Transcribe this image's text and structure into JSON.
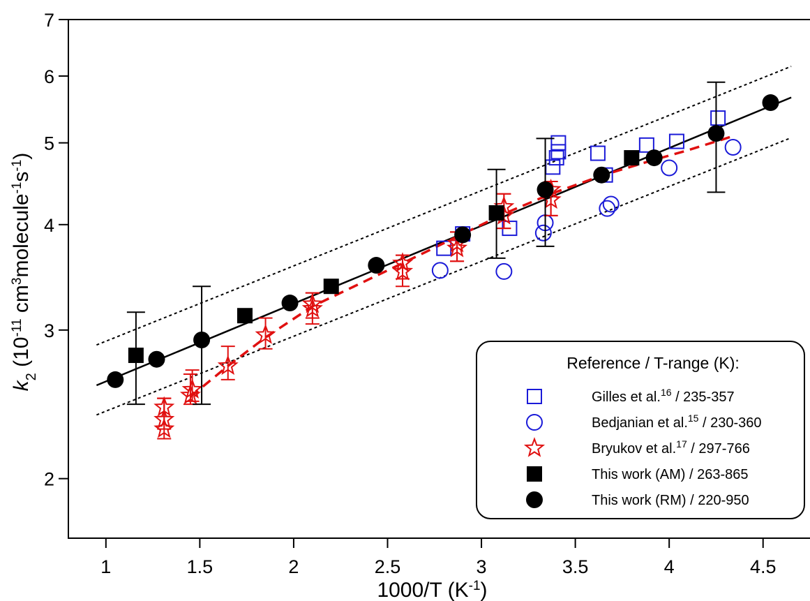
{
  "chart_data": {
    "type": "scatter",
    "title": "",
    "xlabel": "1000/T (K",
    "xlabel_sup": "-1",
    "xlabel_end": ")",
    "ylabel": {
      "var": "k",
      "sub": "2",
      "p1": " (10",
      "s1": "-11",
      "p2": " cm",
      "s2": "3",
      "p3": "molecule",
      "s3": "-1",
      "p4": "s",
      "s4": "-1",
      "p5": ")"
    },
    "xlim": [
      0.8,
      4.75
    ],
    "ylim": [
      1.7,
      7
    ],
    "y_scale": "log",
    "x_ticks": [
      1,
      1.5,
      2,
      2.5,
      3,
      3.5,
      4,
      4.5
    ],
    "x_tick_labels": [
      "1",
      "1.5",
      "2",
      "2.5",
      "3",
      "3.5",
      "4",
      "4.5"
    ],
    "y_ticks": [
      2,
      3,
      4,
      5,
      6,
      7
    ],
    "y_tick_labels": [
      "2",
      "3",
      "4",
      "5",
      "6",
      "7"
    ],
    "grid": false,
    "legend": {
      "placement": "bottom-right",
      "title": "Reference / T-range (K):",
      "entries": [
        {
          "pre": "Gilles et al.",
          "sup": "16",
          "post": " / 235-357",
          "marker": "open-square",
          "color": "#1a1ad8"
        },
        {
          "pre": "Bedjanian et al.",
          "sup": "15",
          "post": " / 230-360",
          "marker": "open-circle",
          "color": "#1a1ad8"
        },
        {
          "pre": "Bryukov et al.",
          "sup": "17",
          "post": " / 297-766",
          "marker": "open-star",
          "color": "#e01010"
        },
        {
          "pre": "This work (AM)",
          "sup": "",
          "post": " / 263-865",
          "marker": "filled-square",
          "color": "#000000"
        },
        {
          "pre": "This work (RM)",
          "sup": "",
          "post": " / 220-950",
          "marker": "filled-circle",
          "color": "#000000"
        }
      ]
    },
    "series": [
      {
        "key": "gilles",
        "marker": "open-square",
        "color": "#1a1ad8",
        "points": [
          {
            "x": 2.8,
            "y": 3.75
          },
          {
            "x": 2.9,
            "y": 3.9
          },
          {
            "x": 3.15,
            "y": 3.96
          },
          {
            "x": 3.38,
            "y": 4.68
          },
          {
            "x": 3.4,
            "y": 4.8
          },
          {
            "x": 3.41,
            "y": 4.88
          },
          {
            "x": 3.41,
            "y": 5.0
          },
          {
            "x": 3.62,
            "y": 4.86
          },
          {
            "x": 3.66,
            "y": 4.58
          },
          {
            "x": 3.88,
            "y": 4.97
          },
          {
            "x": 4.04,
            "y": 5.02
          },
          {
            "x": 4.26,
            "y": 5.35
          }
        ]
      },
      {
        "key": "bedjanian",
        "marker": "open-circle",
        "color": "#1a1ad8",
        "points": [
          {
            "x": 2.78,
            "y": 3.53
          },
          {
            "x": 3.12,
            "y": 3.52
          },
          {
            "x": 3.33,
            "y": 3.91
          },
          {
            "x": 3.34,
            "y": 4.02
          },
          {
            "x": 3.67,
            "y": 4.18
          },
          {
            "x": 3.69,
            "y": 4.23
          },
          {
            "x": 4.0,
            "y": 4.67
          },
          {
            "x": 4.34,
            "y": 4.94
          }
        ]
      },
      {
        "key": "bryukov",
        "marker": "open-star",
        "color": "#e01010",
        "points": [
          {
            "x": 1.31,
            "y": 2.29,
            "lo": 2.23,
            "hi": 2.49
          },
          {
            "x": 1.31,
            "y": 2.35,
            "lo": 2.29,
            "hi": 2.49
          },
          {
            "x": 1.31,
            "y": 2.43,
            "lo": 2.37,
            "hi": 2.49
          },
          {
            "x": 1.45,
            "y": 2.51,
            "lo": 2.45,
            "hi": 2.66
          },
          {
            "x": 1.46,
            "y": 2.55,
            "lo": 2.47,
            "hi": 2.69
          },
          {
            "x": 1.65,
            "y": 2.72,
            "lo": 2.62,
            "hi": 2.87
          },
          {
            "x": 1.85,
            "y": 2.96,
            "lo": 2.85,
            "hi": 3.1
          },
          {
            "x": 2.1,
            "y": 3.18,
            "lo": 3.05,
            "hi": 3.32
          },
          {
            "x": 2.1,
            "y": 3.22,
            "lo": 3.1,
            "hi": 3.32
          },
          {
            "x": 2.58,
            "y": 3.52,
            "lo": 3.38,
            "hi": 3.68
          },
          {
            "x": 2.58,
            "y": 3.6,
            "lo": 3.45,
            "hi": 3.68
          },
          {
            "x": 2.87,
            "y": 3.75,
            "lo": 3.62,
            "hi": 3.92
          },
          {
            "x": 2.87,
            "y": 3.8,
            "lo": 3.62,
            "hi": 3.92
          },
          {
            "x": 3.12,
            "y": 4.1,
            "lo": 3.96,
            "hi": 4.35
          },
          {
            "x": 3.12,
            "y": 4.2,
            "lo": 3.96,
            "hi": 4.35
          },
          {
            "x": 3.37,
            "y": 4.28,
            "lo": 4.1,
            "hi": 4.5
          },
          {
            "x": 3.37,
            "y": 4.4,
            "lo": 4.1,
            "hi": 4.5
          }
        ]
      },
      {
        "key": "this_work_am",
        "marker": "filled-square",
        "color": "#000000",
        "points": [
          {
            "x": 1.16,
            "y": 2.8,
            "lo": 2.45,
            "hi": 3.15
          },
          {
            "x": 1.74,
            "y": 3.12
          },
          {
            "x": 2.2,
            "y": 3.38
          },
          {
            "x": 3.08,
            "y": 4.13,
            "lo": 3.65,
            "hi": 4.65
          },
          {
            "x": 3.8,
            "y": 4.8
          }
        ]
      },
      {
        "key": "this_work_rm",
        "marker": "filled-circle",
        "color": "#000000",
        "points": [
          {
            "x": 1.05,
            "y": 2.62
          },
          {
            "x": 1.27,
            "y": 2.77
          },
          {
            "x": 1.51,
            "y": 2.92,
            "lo": 2.45,
            "hi": 3.38
          },
          {
            "x": 1.98,
            "y": 3.23
          },
          {
            "x": 2.44,
            "y": 3.58
          },
          {
            "x": 2.9,
            "y": 3.89
          },
          {
            "x": 3.34,
            "y": 4.4,
            "lo": 3.77,
            "hi": 5.06
          },
          {
            "x": 3.64,
            "y": 4.58
          },
          {
            "x": 3.92,
            "y": 4.8
          },
          {
            "x": 4.25,
            "y": 5.13,
            "lo": 4.37,
            "hi": 5.9
          },
          {
            "x": 4.54,
            "y": 5.58
          }
        ]
      }
    ],
    "lines": [
      {
        "key": "fit",
        "style": "solid",
        "color": "#000000",
        "points": [
          {
            "x": 0.95,
            "y": 2.58
          },
          {
            "x": 4.65,
            "y": 5.66
          }
        ]
      },
      {
        "key": "upper-bound",
        "style": "dotted",
        "color": "#000000",
        "points": [
          {
            "x": 0.95,
            "y": 2.88
          },
          {
            "x": 4.65,
            "y": 6.16
          }
        ]
      },
      {
        "key": "lower-bound",
        "style": "dotted",
        "color": "#000000",
        "points": [
          {
            "x": 0.95,
            "y": 2.38
          },
          {
            "x": 4.65,
            "y": 5.07
          }
        ]
      },
      {
        "key": "bryukov-fit",
        "style": "dashed",
        "color": "#e01010",
        "points": [
          {
            "x": 1.45,
            "y": 2.5
          },
          {
            "x": 1.65,
            "y": 2.72
          },
          {
            "x": 1.85,
            "y": 2.94
          },
          {
            "x": 2.1,
            "y": 3.2
          },
          {
            "x": 2.58,
            "y": 3.6
          },
          {
            "x": 2.87,
            "y": 3.87
          },
          {
            "x": 3.12,
            "y": 4.12
          },
          {
            "x": 3.37,
            "y": 4.35
          },
          {
            "x": 3.65,
            "y": 4.58
          },
          {
            "x": 3.9,
            "y": 4.76
          },
          {
            "x": 4.1,
            "y": 4.9
          },
          {
            "x": 4.35,
            "y": 5.1
          }
        ]
      }
    ]
  }
}
